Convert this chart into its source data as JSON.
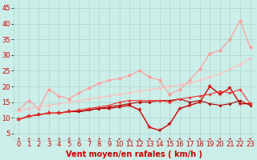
{
  "background_color": "#cceee8",
  "grid_color": "#aad4ce",
  "xlabel": "Vent moyen/en rafales ( km/h )",
  "xlabel_color": "#cc0000",
  "xlabel_fontsize": 7,
  "ylabel_ticks": [
    5,
    10,
    15,
    20,
    25,
    30,
    35,
    40,
    45
  ],
  "xlim_min": -0.5,
  "xlim_max": 23.5,
  "ylim_min": 3,
  "ylim_max": 47,
  "x": [
    0,
    1,
    2,
    3,
    4,
    5,
    6,
    7,
    8,
    9,
    10,
    11,
    12,
    13,
    14,
    15,
    16,
    17,
    18,
    19,
    20,
    21,
    22,
    23
  ],
  "line1": [
    12.5,
    15.5,
    13.0,
    19.0,
    17.0,
    16.0,
    18.0,
    19.5,
    21.0,
    22.0,
    22.5,
    23.5,
    25.0,
    23.0,
    22.0,
    17.5,
    19.0,
    22.0,
    25.5,
    30.5,
    31.5,
    35.0,
    41.0,
    32.5
  ],
  "line1_color": "#ff9999",
  "line1_lw": 0.8,
  "line2": [
    12.0,
    13.0,
    13.5,
    14.0,
    14.5,
    15.0,
    15.5,
    16.0,
    16.5,
    17.0,
    17.5,
    18.0,
    18.5,
    19.0,
    19.5,
    20.0,
    20.5,
    21.0,
    22.0,
    23.0,
    24.0,
    25.5,
    27.0,
    29.0
  ],
  "line2_color": "#ffbbbb",
  "line2_lw": 0.8,
  "line3": [
    9.5,
    10.5,
    11.0,
    11.5,
    11.5,
    12.0,
    12.0,
    12.5,
    13.0,
    13.0,
    13.5,
    14.0,
    12.5,
    7.0,
    6.0,
    8.0,
    13.0,
    14.0,
    15.0,
    20.0,
    17.5,
    19.5,
    14.5,
    14.5
  ],
  "line3_color": "#cc0000",
  "line3_lw": 1.0,
  "line4": [
    9.5,
    10.5,
    11.0,
    11.5,
    11.5,
    12.0,
    12.0,
    12.5,
    13.0,
    13.5,
    14.0,
    14.5,
    15.0,
    15.0,
    15.5,
    15.5,
    16.0,
    15.0,
    15.5,
    14.5,
    14.0,
    14.5,
    15.5,
    14.0
  ],
  "line4_color": "#aa0000",
  "line4_lw": 0.8,
  "line5": [
    9.5,
    10.5,
    11.0,
    11.5,
    11.5,
    12.0,
    12.5,
    13.0,
    13.5,
    14.0,
    15.0,
    15.5,
    15.5,
    15.5,
    15.5,
    15.0,
    16.0,
    16.5,
    17.0,
    17.5,
    18.5,
    18.0,
    19.0,
    14.5
  ],
  "line5_color": "#ee3333",
  "line5_lw": 0.8,
  "arrow_color": "#cc0000",
  "tick_color": "#cc0000",
  "tick_fontsize": 6,
  "ytick_fontsize": 6,
  "xtick_labels": [
    "0",
    "1",
    "2",
    "3",
    "4",
    "5",
    "6",
    "7",
    "8",
    "9",
    "10",
    "11",
    "12",
    "13",
    "14",
    "15",
    "16",
    "17",
    "18",
    "19",
    "20",
    "21",
    "22",
    "23"
  ],
  "arrow_angles": [
    0,
    0,
    0,
    0,
    0,
    0,
    0,
    0,
    0,
    0,
    45,
    90,
    90,
    135,
    135,
    135,
    135,
    135,
    135,
    135,
    135,
    135,
    135,
    135
  ]
}
